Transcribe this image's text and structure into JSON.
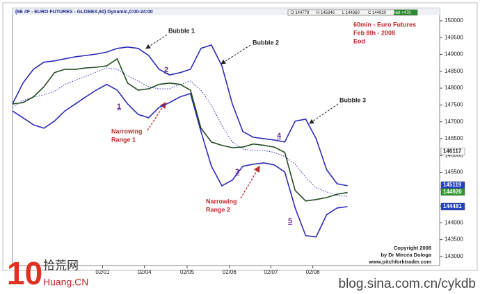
{
  "chart_data": {
    "type": "line",
    "header": "(6E #F - EURO FUTURES - GLOBEX,60) Dynamic,0:00-24:00",
    "info": [
      "O 144779",
      "H 145346",
      "L 144360",
      "C 144920",
      "Net +479"
    ],
    "note": [
      "60min - Euro Futures",
      "Feb 8th - 2008",
      "Eod"
    ],
    "annotations": {
      "bubbles": [
        "Bubble 1",
        "Bubble 2",
        "Bubble 3"
      ],
      "numbers": [
        "1",
        "2",
        "3",
        "4",
        "5"
      ],
      "narrowing": [
        [
          "Narrowing",
          "Range 1"
        ],
        [
          "Narrowing",
          "Range 2"
        ]
      ]
    },
    "copyright": [
      "Copyright 2008",
      "by Dr Mircea Dologa",
      "www.pitchforktrader.com"
    ],
    "x": [
      0,
      0.25,
      0.5,
      0.75,
      1,
      1.25,
      1.5,
      1.75,
      2,
      2.25,
      2.5,
      2.75,
      3,
      3.25,
      3.5,
      3.75,
      4,
      4.25,
      4.5,
      4.75,
      5,
      5.25,
      5.5,
      5.75,
      6,
      6.25,
      6.5,
      6.75,
      7,
      7.25,
      7.5,
      7.75,
      8
    ],
    "xlim": [
      0,
      10.2
    ],
    "xticks": [
      {
        "value": 2.15,
        "label": "02/01"
      },
      {
        "value": 3.15,
        "label": "02/04"
      },
      {
        "value": 4.17,
        "label": "02/05"
      },
      {
        "value": 5.18,
        "label": "02/06"
      },
      {
        "value": 6.17,
        "label": "02/07"
      },
      {
        "value": 7.17,
        "label": "02/08"
      }
    ],
    "ylim": [
      142730,
      150370
    ],
    "yticks": [
      143000,
      143500,
      144000,
      144500,
      145000,
      145500,
      146000,
      146500,
      147000,
      147500,
      148000,
      148500,
      149000,
      149500,
      150000
    ],
    "grid": false,
    "series": [
      {
        "color": "#2a2ab8",
        "line_style": "solid",
        "values": [
          147320,
          147120,
          146910,
          146810,
          147020,
          147320,
          147530,
          147740,
          147940,
          148110,
          147940,
          147530,
          147220,
          147120,
          147430,
          147570,
          147740,
          147840,
          146710,
          145680,
          145100,
          145270,
          145680,
          145740,
          145780,
          145720,
          145510,
          144440,
          143620,
          143580,
          144240,
          144440,
          144480
        ]
      },
      {
        "color": "#2a2ab8",
        "line_style": "solid",
        "values": [
          147530,
          148150,
          148560,
          148770,
          148810,
          148870,
          148930,
          148970,
          149010,
          149070,
          149180,
          149220,
          149180,
          148970,
          148560,
          148390,
          148460,
          148560,
          149180,
          149280,
          148660,
          147530,
          146710,
          146540,
          146500,
          146460,
          146400,
          147020,
          147080,
          146500,
          145580,
          145160,
          145100
        ]
      },
      {
        "color": "#2a2ab8",
        "line_style": "dotted",
        "values": [
          147430,
          147630,
          147740,
          147800,
          147900,
          148110,
          148230,
          148350,
          148480,
          148600,
          148560,
          148370,
          148210,
          148040,
          147980,
          147980,
          148110,
          148210,
          147940,
          147490,
          146890,
          146400,
          146190,
          146150,
          146150,
          146090,
          145970,
          145740,
          145350,
          145040,
          144920,
          144810,
          144790
        ]
      },
      {
        "color": "#1f4a1f",
        "line_style": "solid",
        "values": [
          147530,
          147570,
          147740,
          148040,
          148460,
          148560,
          148560,
          148600,
          148620,
          148660,
          148870,
          148150,
          147940,
          147980,
          148110,
          148150,
          148110,
          147940,
          146810,
          146400,
          146300,
          146230,
          146250,
          146340,
          146300,
          146250,
          146090,
          144960,
          144650,
          144690,
          144750,
          144850,
          144900
        ]
      }
    ],
    "price_tags": [
      {
        "value": 146117,
        "color": "#ffffff",
        "text_color": "#222222"
      },
      {
        "value": 145119,
        "color": "#1f3fc8",
        "text_color": "#ffffff"
      },
      {
        "value": 144920,
        "color": "#2e9a2e",
        "text_color": "#ffffff"
      },
      {
        "value": 144481,
        "color": "#1f3fc8",
        "text_color": "#ffffff"
      }
    ]
  },
  "watermark": {
    "logo": "10",
    "site_cn": "拾荒网",
    "domain": "Huang.CN",
    "blog": "blog.sina.com.cn/cykdb"
  }
}
